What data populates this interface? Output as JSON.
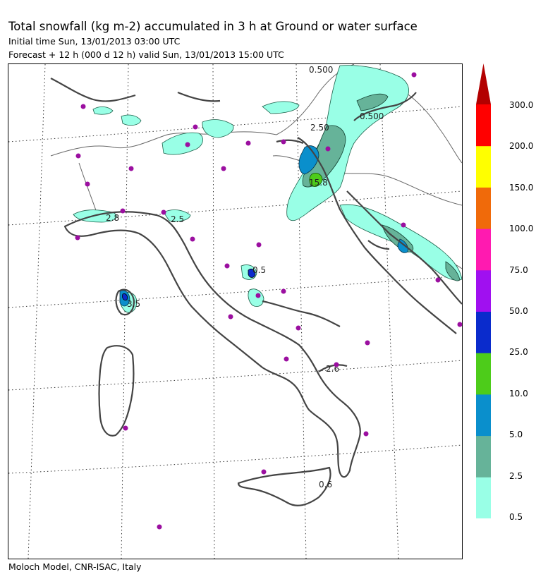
{
  "header": {
    "title": "Total snowfall (kg m-2) accumulated in   3 h at Ground or water surface",
    "initial_time": "Initial time  Sun, 13/01/2013  03:00 UTC",
    "forecast": "Forecast  +  12 h  (000 d 12 h)  valid Sun, 13/01/2013 15:00 UTC"
  },
  "footer": {
    "credit": "Moloch Model, CNR-ISAC, Italy"
  },
  "colorbar": {
    "levels": [
      "0.5",
      "2.5",
      "5.0",
      "10.0",
      "25.0",
      "50.0",
      "75.0",
      "100.0",
      "150.0",
      "200.0",
      "300.0"
    ],
    "colors": [
      "#99ffe6",
      "#66b399",
      "#0a8fcc",
      "#4dcc1a",
      "#0a2bcc",
      "#a010f0",
      "#ff1ab0",
      "#f06a0a",
      "#ffff00",
      "#ff0000",
      "#b30000"
    ]
  },
  "map": {
    "contour_labels": [
      "0.500",
      "0.500",
      "2.50",
      "15.8",
      "0.5",
      "3.5",
      "2.8",
      "2.5",
      "2.6",
      "0.6"
    ],
    "colors": {
      "coast": "#444444",
      "border": "#666666",
      "grid": "#333333",
      "city": "#9b0fa0",
      "snow_light": "#99ffe6",
      "snow_mid": "#66b399",
      "snow_high": "#0a8fcc",
      "snow_peak": "#4dcc1a",
      "snow_dark": "#0a2bcc"
    }
  }
}
